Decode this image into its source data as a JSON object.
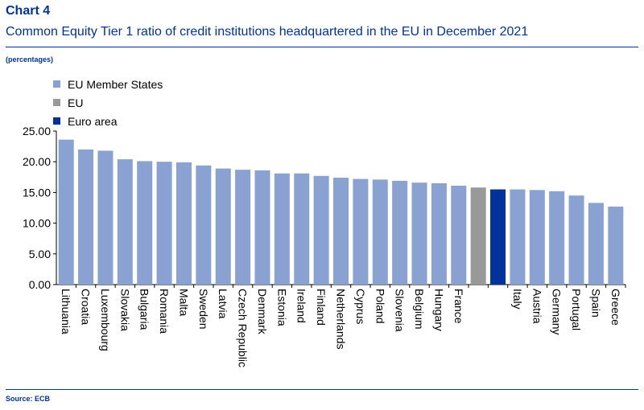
{
  "header": {
    "chart_label": "Chart 4",
    "title": "Common Equity Tier 1 ratio of credit institutions headquartered in the EU in December 2021",
    "unit": "(percentages)"
  },
  "footer": {
    "source": "Source: ECB"
  },
  "colors": {
    "member": "#8aa2d2",
    "eu": "#999999",
    "euro_area": "#003299",
    "text": "#003299"
  },
  "legend": [
    {
      "label": "EU Member States",
      "color": "#8aa2d2"
    },
    {
      "label": "EU",
      "color": "#999999"
    },
    {
      "label": "Euro area",
      "color": "#003299"
    }
  ],
  "chart_data": {
    "type": "bar",
    "categories": [
      "Lithuania",
      "Croatia",
      "Luxembourg",
      "Slovakia",
      "Bulgaria",
      "Romania",
      "Malta",
      "Sweden",
      "Latvia",
      "Czech Republic",
      "Denmark",
      "Estonia",
      "Ireland",
      "Finland",
      "Netherlands",
      "Cyprus",
      "Poland",
      "Slovenia",
      "Belgium",
      "Hungary",
      "France",
      "",
      "",
      "Italy",
      "Austria",
      "Germany",
      "Portugal",
      "Spain",
      "Greece"
    ],
    "values": [
      23.6,
      22.0,
      21.8,
      20.4,
      20.1,
      20.0,
      19.9,
      19.4,
      18.9,
      18.7,
      18.6,
      18.1,
      18.1,
      17.7,
      17.4,
      17.2,
      17.1,
      16.9,
      16.6,
      16.5,
      16.1,
      15.8,
      15.5,
      15.5,
      15.4,
      15.2,
      14.5,
      13.3,
      12.7
    ],
    "groups": [
      "member",
      "member",
      "member",
      "member",
      "member",
      "member",
      "member",
      "member",
      "member",
      "member",
      "member",
      "member",
      "member",
      "member",
      "member",
      "member",
      "member",
      "member",
      "member",
      "member",
      "member",
      "eu",
      "euro_area",
      "member",
      "member",
      "member",
      "member",
      "member",
      "member"
    ],
    "yticks": [
      "0.00",
      "5.00",
      "10.00",
      "15.00",
      "20.00",
      "25.00"
    ],
    "ylim": [
      0,
      25
    ],
    "grid": false,
    "legend_position": "top-left"
  }
}
